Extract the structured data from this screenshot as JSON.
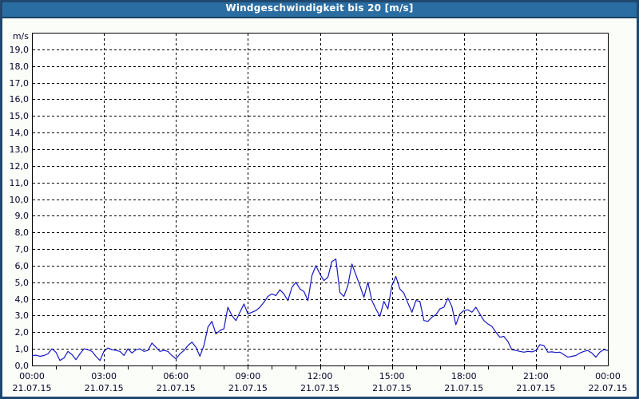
{
  "window": {
    "title": "Windgeschwindigkeit bis 20 [m/s]"
  },
  "colors": {
    "title_bar_bg": "#2A6DA3",
    "title_bar_text": "#FFFFFF",
    "outer_border": "#20486E",
    "page_bg": "#FAFDF8",
    "plot_bg": "#FFFFFF",
    "grid": "#000000",
    "axis": "#000000",
    "series_line": "#1717C3",
    "tick_label": "#06062A"
  },
  "chart_data": {
    "type": "line",
    "title": "Windgeschwindigkeit bis 20 [m/s]",
    "ylabel": "m/s",
    "y_unit_label": "m/s",
    "ylim": [
      0,
      20
    ],
    "y_tick_step": 1,
    "y_tick_labels": [
      "0,0",
      "1,0",
      "2,0",
      "3,0",
      "4,0",
      "5,0",
      "6,0",
      "7,0",
      "8,0",
      "9,0",
      "10,0",
      "11,0",
      "12,0",
      "13,0",
      "14,0",
      "15,0",
      "16,0",
      "17,0",
      "18,0",
      "19,0"
    ],
    "x_hours_span": 24,
    "x_minor_tick_hours": 1,
    "grid": "dashed",
    "legend_position": "none",
    "x_ticks": [
      {
        "hour": 0,
        "time": "00:00",
        "date": "21.07.15"
      },
      {
        "hour": 3,
        "time": "03:00",
        "date": "21.07.15"
      },
      {
        "hour": 6,
        "time": "06:00",
        "date": "21.07.15"
      },
      {
        "hour": 9,
        "time": "09:00",
        "date": "21.07.15"
      },
      {
        "hour": 12,
        "time": "12:00",
        "date": "21.07.15"
      },
      {
        "hour": 15,
        "time": "15:00",
        "date": "21.07.15"
      },
      {
        "hour": 18,
        "time": "18:00",
        "date": "21.07.15"
      },
      {
        "hour": 21,
        "time": "21:00",
        "date": "21.07.15"
      },
      {
        "hour": 24,
        "time": "00:00",
        "date": "22.07.15"
      }
    ],
    "series": [
      {
        "name": "Windgeschwindigkeit",
        "unit": "m/s",
        "start": "21.07.15 00:00",
        "interval_minutes": 10,
        "values": [
          0.6,
          0.62,
          0.55,
          0.6,
          0.7,
          1.0,
          0.8,
          0.3,
          0.45,
          0.85,
          0.65,
          0.35,
          0.7,
          1.0,
          0.95,
          0.85,
          0.55,
          0.3,
          0.85,
          1.05,
          0.95,
          0.9,
          0.85,
          0.6,
          1.0,
          0.75,
          0.95,
          1.0,
          0.85,
          0.9,
          1.35,
          1.1,
          0.85,
          0.9,
          0.85,
          0.6,
          0.4,
          0.7,
          0.9,
          1.2,
          1.4,
          1.1,
          0.55,
          1.2,
          2.3,
          2.65,
          1.9,
          2.1,
          2.2,
          3.5,
          3.0,
          2.7,
          3.2,
          3.7,
          3.1,
          3.2,
          3.3,
          3.5,
          3.8,
          4.15,
          4.3,
          4.2,
          4.55,
          4.3,
          3.9,
          4.7,
          5.0,
          4.6,
          4.45,
          3.9,
          5.4,
          6.0,
          5.5,
          5.1,
          5.3,
          6.25,
          6.4,
          4.4,
          4.15,
          4.8,
          6.1,
          5.45,
          4.8,
          4.1,
          5.0,
          3.9,
          3.4,
          2.95,
          3.85,
          3.4,
          4.8,
          5.35,
          4.6,
          4.35,
          3.75,
          3.2,
          3.9,
          3.85,
          2.7,
          2.65,
          2.9,
          3.05,
          3.4,
          3.5,
          4.05,
          3.55,
          2.45,
          3.1,
          3.3,
          3.35,
          3.2,
          3.5,
          3.1,
          2.7,
          2.5,
          2.35,
          2.0,
          1.7,
          1.75,
          1.45,
          0.95,
          0.9,
          0.85,
          0.8,
          0.85,
          0.82,
          0.9,
          1.25,
          1.2,
          0.8,
          0.82,
          0.78,
          0.8,
          0.65,
          0.5,
          0.55,
          0.6,
          0.75,
          0.85,
          0.9,
          0.75,
          0.5,
          0.8,
          0.95,
          0.9
        ]
      }
    ]
  }
}
